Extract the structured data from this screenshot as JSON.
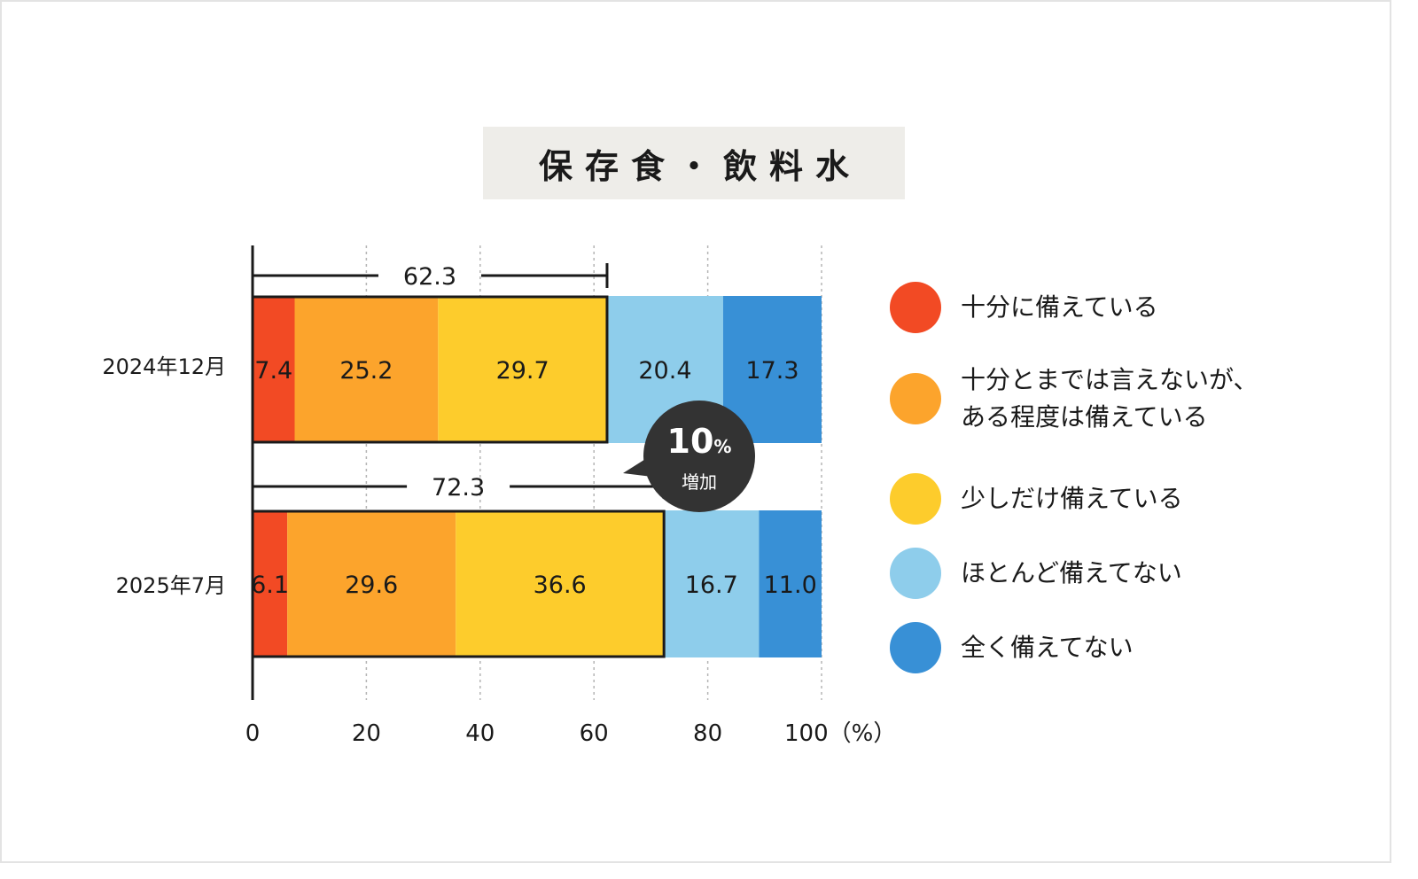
{
  "title": "保存食・飲料水",
  "chart_data": {
    "type": "bar",
    "orientation": "horizontal-stacked",
    "categories": [
      "2024年12月",
      "2025年7月"
    ],
    "series": [
      {
        "name": "十分に備えている",
        "color": "#f24a24",
        "values": [
          7.4,
          6.1
        ]
      },
      {
        "name": "十分とまでは言えないが、ある程度は備えている",
        "color": "#fca42c",
        "values": [
          25.2,
          29.6
        ]
      },
      {
        "name": "少しだけ備えている",
        "color": "#fdcc2c",
        "values": [
          29.7,
          36.6
        ]
      },
      {
        "name": "ほとんど備えてない",
        "color": "#8ecdeb",
        "values": [
          20.4,
          16.7
        ]
      },
      {
        "name": "全く備えてない",
        "color": "#3890d6",
        "values": [
          17.3,
          11.0
        ]
      }
    ],
    "value_labels": [
      [
        "7.4",
        "25.2",
        "29.7",
        "20.4",
        "17.3"
      ],
      [
        "6.1",
        "29.6",
        "36.6",
        "16.7",
        "11.0"
      ]
    ],
    "prepared_totals": [
      62.3,
      72.3
    ],
    "prepared_total_labels": [
      "62.3",
      "72.3"
    ],
    "xlim": [
      0,
      100
    ],
    "x_ticks": [
      0,
      20,
      40,
      60,
      80,
      100
    ],
    "x_tick_labels": [
      "0",
      "20",
      "40",
      "60",
      "80",
      "100（%）"
    ],
    "grid": "vertical-dotted"
  },
  "legend": [
    {
      "lines": [
        "十分に備えている"
      ],
      "color": "#f24a24"
    },
    {
      "lines": [
        "十分とまでは言えないが、",
        "ある程度は備えている"
      ],
      "color": "#fca42c"
    },
    {
      "lines": [
        "少しだけ備えている"
      ],
      "color": "#fdcc2c"
    },
    {
      "lines": [
        "ほとんど備えてない"
      ],
      "color": "#8ecdeb"
    },
    {
      "lines": [
        "全く備えてない"
      ],
      "color": "#3890d6"
    }
  ],
  "callout": {
    "number": "10",
    "unit": "%",
    "text": "増加",
    "color": "#333333"
  }
}
